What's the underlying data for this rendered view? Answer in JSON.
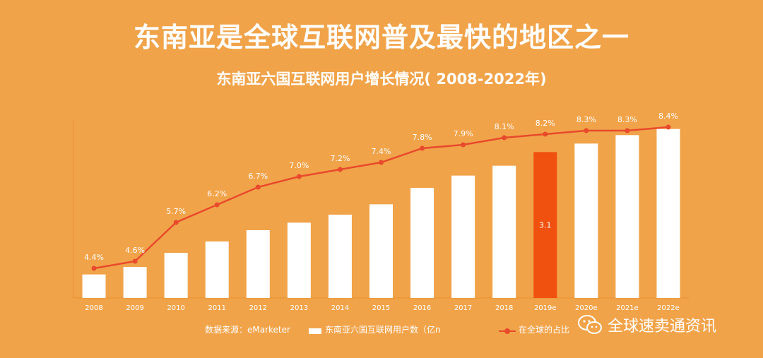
{
  "title": "东南亚是全球互联网普及最快的地区之一",
  "subtitle": "东南亚六国互联网用户增长情况( 2008-2022年)",
  "legend": {
    "source": "数据来源：eMarketer",
    "bar_label": "东南亚六国互联网用户数（亿n",
    "line_label": "在全球的占比"
  },
  "watermark": {
    "text": "全球速卖通资讯",
    "icon": "wechat-icon"
  },
  "colors": {
    "bar": "#FFFFFF",
    "highlight_bar": "#F0510F",
    "line": "#E84A2C",
    "background": "#F1A349"
  },
  "chart_data": {
    "type": "bar",
    "categories": [
      "2008",
      "2009",
      "2010",
      "2011",
      "2012",
      "2013",
      "2014",
      "2015",
      "2016",
      "2017",
      "2018",
      "2019e",
      "2020e",
      "2021e",
      "2022e"
    ],
    "series": [
      {
        "type": "bar",
        "values": [
          0.5,
          0.66,
          0.96,
          1.2,
          1.44,
          1.6,
          1.77,
          1.99,
          2.34,
          2.6,
          2.81,
          3.1,
          3.28,
          3.46,
          3.59
        ],
        "data_labels": [
          "",
          "",
          "",
          "",
          "",
          "",
          "",
          "",
          "",
          "",
          "",
          "3.1",
          "",
          "",
          ""
        ],
        "highlight_index": 11
      },
      {
        "name": "在全球的占比",
        "type": "line",
        "values": [
          4.4,
          4.6,
          5.7,
          6.2,
          6.7,
          7.0,
          7.2,
          7.4,
          7.8,
          7.9,
          8.1,
          8.2,
          8.3,
          8.3,
          8.4
        ],
        "data_labels": [
          "4.4%",
          "4.6%",
          "5.7%",
          "6.2%",
          "6.7%",
          "7.0%",
          "7.2%",
          "7.4%",
          "7.8%",
          "7.9%",
          "8.1%",
          "8.2%",
          "8.3%",
          "8.3%",
          "8.4%"
        ]
      }
    ],
    "bar_axis_range": [
      0,
      3.6
    ],
    "line_axis_range": [
      4.0,
      8.4
    ],
    "grid": false
  }
}
